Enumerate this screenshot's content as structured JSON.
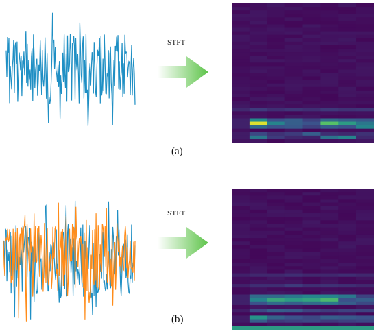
{
  "panels": [
    {
      "id": "a",
      "caption": "(a)",
      "transform_label": "STFT",
      "signals": [
        {
          "color": "#1f8fc4",
          "seed": 7
        }
      ],
      "spectrogram": {
        "time_bins": 8,
        "freq_bins": 40,
        "colormap": [
          "#440154",
          "#3b528b",
          "#21908c",
          "#5dc863",
          "#fde725"
        ],
        "bright_rows": [
          {
            "row_from_bottom": 9,
            "cells": [
              0.12,
              0.18,
              0.14,
              0.16,
              0.14,
              0.17,
              0.15,
              0.16
            ]
          },
          {
            "row_from_bottom": 6,
            "cells": [
              0.1,
              0.48,
              0.25,
              0.3,
              0.2,
              0.35,
              0.3,
              0.28
            ]
          },
          {
            "row_from_bottom": 5,
            "cells": [
              0.1,
              0.95,
              0.45,
              0.3,
              0.25,
              0.72,
              0.55,
              0.4
            ]
          },
          {
            "row_from_bottom": 4,
            "cells": [
              0.1,
              0.35,
              0.25,
              0.28,
              0.2,
              0.3,
              0.25,
              0.45
            ]
          },
          {
            "row_from_bottom": 2,
            "cells": [
              0.08,
              0.22,
              0.15,
              0.18,
              0.3,
              0.14,
              0.12,
              0.15
            ]
          },
          {
            "row_from_bottom": 1,
            "cells": [
              0.08,
              0.4,
              0.18,
              0.12,
              0.1,
              0.38,
              0.45,
              0.12
            ]
          }
        ]
      }
    },
    {
      "id": "b",
      "caption": "(b)",
      "transform_label": "STFT",
      "signals": [
        {
          "color": "#1f8fc4",
          "seed": 11
        },
        {
          "color": "#ff8c1a",
          "seed": 23
        }
      ],
      "spectrogram": {
        "time_bins": 8,
        "freq_bins": 40,
        "colormap": [
          "#440154",
          "#3b528b",
          "#21908c",
          "#5dc863",
          "#fde725"
        ],
        "bright_rows": [
          {
            "row_from_bottom": 15,
            "cells": [
              0.1,
              0.12,
              0.12,
              0.14,
              0.12,
              0.12,
              0.14,
              0.12
            ]
          },
          {
            "row_from_bottom": 12,
            "cells": [
              0.1,
              0.14,
              0.14,
              0.18,
              0.14,
              0.15,
              0.14,
              0.12
            ]
          },
          {
            "row_from_bottom": 9,
            "cells": [
              0.1,
              0.35,
              0.35,
              0.4,
              0.45,
              0.45,
              0.4,
              0.2
            ]
          },
          {
            "row_from_bottom": 8,
            "cells": [
              0.1,
              0.45,
              0.6,
              0.55,
              0.58,
              0.68,
              0.25,
              0.3
            ]
          },
          {
            "row_from_bottom": 7,
            "cells": [
              0.1,
              0.25,
              0.35,
              0.3,
              0.35,
              0.4,
              0.3,
              0.22
            ]
          },
          {
            "row_from_bottom": 5,
            "cells": [
              0.08,
              0.22,
              0.3,
              0.28,
              0.2,
              0.18,
              0.2,
              0.2
            ]
          },
          {
            "row_from_bottom": 3,
            "cells": [
              0.08,
              0.52,
              0.32,
              0.25,
              0.22,
              0.3,
              0.28,
              0.25
            ]
          },
          {
            "row_from_bottom": 2,
            "cells": [
              0.08,
              0.3,
              0.18,
              0.2,
              0.22,
              0.18,
              0.2,
              0.22
            ]
          },
          {
            "row_from_bottom": 0,
            "cells": [
              0.55,
              0.55,
              0.55,
              0.55,
              0.55,
              0.55,
              0.55,
              0.55
            ]
          }
        ]
      }
    }
  ],
  "arrow_color": "#5ec44a"
}
